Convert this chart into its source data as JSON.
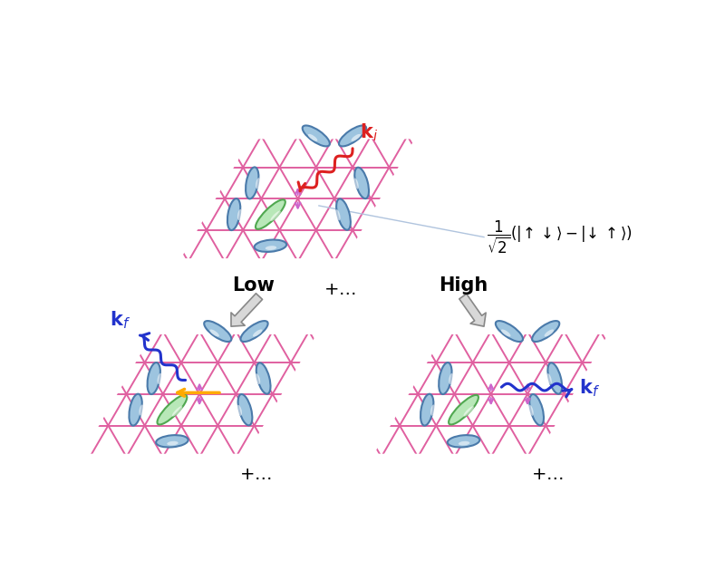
{
  "bg_color": "#ffffff",
  "lattice_color": "#e060a0",
  "ellipse_blue_face": "#9dc4df",
  "ellipse_blue_edge": "#4a7aaa",
  "ellipse_green_face": "#b8e8b8",
  "ellipse_green_edge": "#50a850",
  "singlet_color": "#cc66cc",
  "arrow_red": "#dd2020",
  "arrow_blue": "#2233cc",
  "arrow_orange": "#ffaa00",
  "arrow_gray_face": "#d8d8d8",
  "arrow_gray_edge": "#888888",
  "lw_lattice": 1.4,
  "lw_ellipse": 1.5
}
